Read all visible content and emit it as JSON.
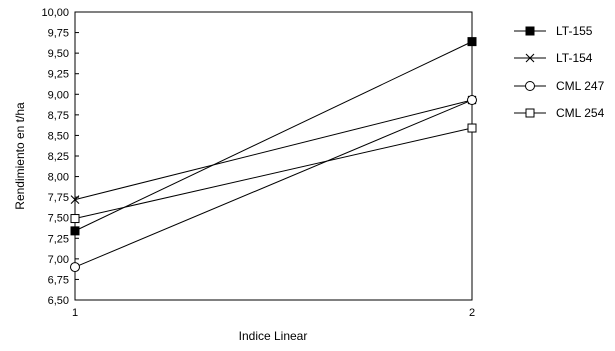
{
  "chart_data": {
    "type": "line",
    "title": "",
    "xlabel": "Indice Linear",
    "ylabel": "Rendimiento en t/ha",
    "x": [
      1,
      2
    ],
    "x_tick_labels": [
      "1",
      "2"
    ],
    "ylim": [
      6.5,
      10.0
    ],
    "y_tick_labels": [
      "6,50",
      "6,75",
      "7,00",
      "7,25",
      "7,50",
      "7,75",
      "8,00",
      "8,25",
      "8,50",
      "8,75",
      "9,00",
      "9,25",
      "9,50",
      "9,75",
      "10,00"
    ],
    "grid": false,
    "legend_position": "right",
    "series": [
      {
        "name": "LT-155",
        "marker": "filled-square",
        "values": [
          7.34,
          9.64
        ]
      },
      {
        "name": "LT-154",
        "marker": "x",
        "values": [
          7.72,
          8.93
        ]
      },
      {
        "name": "CML 247",
        "marker": "open-circle",
        "values": [
          6.9,
          8.93
        ]
      },
      {
        "name": "CML 254",
        "marker": "open-square",
        "values": [
          7.49,
          8.59
        ]
      }
    ],
    "colors": {
      "line": "#000000",
      "marker_fill": "#000000",
      "marker_open": "#ffffff"
    }
  }
}
